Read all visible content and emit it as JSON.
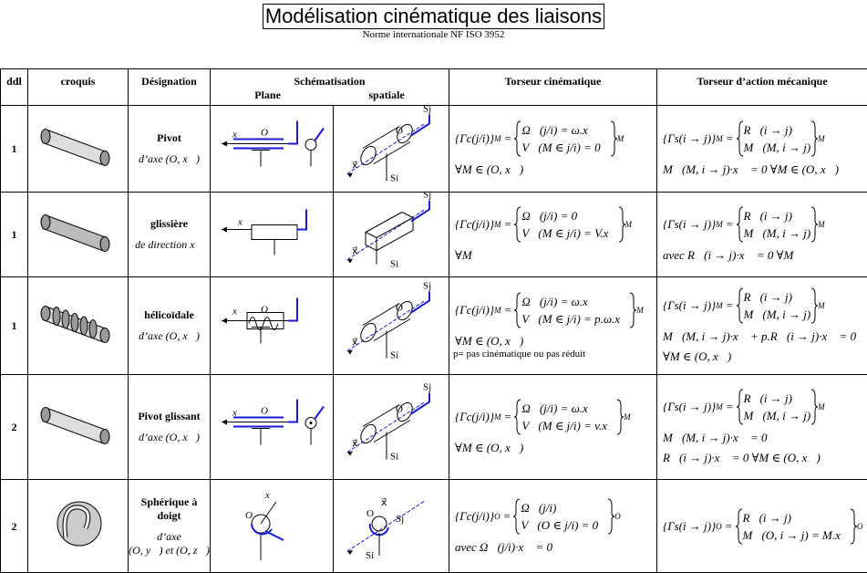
{
  "header": {
    "title": "Modélisation cinématique des liaisons",
    "subtitle": "Norme internationale NF ISO 3952"
  },
  "columns": [
    "ddl",
    "croquis",
    "Désignation",
    "Schématisation",
    "Torseur cinématique",
    "Torseur d’action mécanique"
  ],
  "subcolumns": [
    "Plane",
    "spatiale"
  ],
  "symbols": {
    "equals": "="
  },
  "rows": [
    {
      "ddl": "1",
      "name": "Pivot",
      "axis": [
        "d’axe (O, x⃗)"
      ],
      "plane_labels": [
        "x⃗",
        "O"
      ],
      "spatial_labels": [
        "Sj",
        "Si",
        "x⃗",
        "O"
      ],
      "cin": {
        "lhs": "{Γc(j/i)}",
        "sub": "M",
        "top": "Ω⃗(j/i) = ω.x⃗",
        "bottom": "V⃗(M ∈ j/i) = 0⃗",
        "sub2": "M"
      },
      "cin_cond": [
        "∀M ∈ (O, x⃗)"
      ],
      "act": {
        "lhs": "{Γs(i → j)}",
        "sub": "M",
        "top": "R⃗(i → j)",
        "bottom": "M⃗(M, i → j)",
        "sub2": "M"
      },
      "act_cond": [
        "M⃗(M, i → j)·x⃗ = 0    ∀M ∈ (O, x⃗)"
      ]
    },
    {
      "ddl": "1",
      "name": "glissière",
      "axis": [
        "de direction x⃗"
      ],
      "plane_labels": [
        "x⃗"
      ],
      "spatial_labels": [
        "Sj",
        "Si",
        "x⃗"
      ],
      "cin": {
        "lhs": "{Γc(j/i)}",
        "sub": "M",
        "top": "Ω⃗(j/i) = 0⃗",
        "bottom": "V⃗(M ∈ j/i) = V.x⃗",
        "sub2": "M"
      },
      "cin_cond": [
        "∀M"
      ],
      "act": {
        "lhs": "{Γs(i → j)}",
        "sub": "M",
        "top": "R⃗(i → j)",
        "bottom": "M⃗(M, i → j)",
        "sub2": "M"
      },
      "act_cond": [
        "avec  R⃗(i → j)·x⃗ = 0   ∀M"
      ]
    },
    {
      "ddl": "1",
      "name": "hélicoïdale",
      "axis": [
        "d’axe (O, x⃗)"
      ],
      "plane_labels": [
        "x⃗",
        "O"
      ],
      "spatial_labels": [
        "Sj",
        "Si",
        "x⃗",
        "O"
      ],
      "cin": {
        "lhs": "{Γc(j/i)}",
        "sub": "M",
        "top": "Ω⃗(j/i) = ω.x⃗",
        "bottom": "V⃗(M ∈ j/i) = p.ω.x⃗",
        "sub2": "M"
      },
      "cin_cond": [
        "∀M ∈ (O, x⃗)"
      ],
      "note": "p= pas cinématique ou pas réduit",
      "act": {
        "lhs": "{Γs(i → j)}",
        "sub": "M",
        "top": "R⃗(i → j)",
        "bottom": "M⃗(M, i → j)",
        "sub2": "M"
      },
      "act_cond": [
        "M⃗(M, i → j)·x⃗ + p.R⃗(i → j)·x⃗ = 0",
        "∀M ∈ (O, x⃗)"
      ]
    },
    {
      "ddl": "2",
      "name": "Pivot glissant",
      "axis": [
        "d’axe (O, x⃗)"
      ],
      "plane_labels": [
        "x⃗",
        "O"
      ],
      "spatial_labels": [
        "Sj",
        "Si",
        "x⃗",
        "O"
      ],
      "cin": {
        "lhs": "{Γc(j/i)}",
        "sub": "M",
        "top": "Ω⃗(j/i) = ω.x⃗",
        "bottom": "V⃗(M ∈ j/i) = v.x⃗",
        "sub2": "M"
      },
      "cin_cond": [
        "∀M ∈ (O, x⃗)"
      ],
      "act": {
        "lhs": "{Γs(i → j)}",
        "sub": "M",
        "top": "R⃗(i → j)",
        "bottom": "M⃗(M, i → j)",
        "sub2": "M"
      },
      "act_cond": [
        "M⃗(M, i → j)·x⃗ = 0",
        "R⃗(i → j)·x⃗ = 0    ∀M ∈ (O, x⃗)"
      ]
    },
    {
      "ddl": "2",
      "name": "Sphérique à doigt",
      "axis": [
        "d’axe",
        "(O, y⃗) et (O, z⃗)"
      ],
      "plane_labels": [
        "x⃗",
        "O"
      ],
      "spatial_labels": [
        "Sj",
        "Si",
        "x⃗",
        "O"
      ],
      "cin": {
        "lhs": "{Γc(j/i)}",
        "sub": "O",
        "top": "Ω⃗(j/i)",
        "bottom": "V⃗(O ∈ j/i) = 0⃗",
        "sub2": "O"
      },
      "cin_cond": [
        "avec Ω⃗(j/i)·x⃗ = 0"
      ],
      "act": {
        "lhs": "{Γs(i → j)}",
        "sub": "O",
        "top": "R⃗(i → j)",
        "bottom": "M⃗(O, i → j) = M.x⃗",
        "sub2": "O"
      },
      "act_cond": []
    }
  ]
}
